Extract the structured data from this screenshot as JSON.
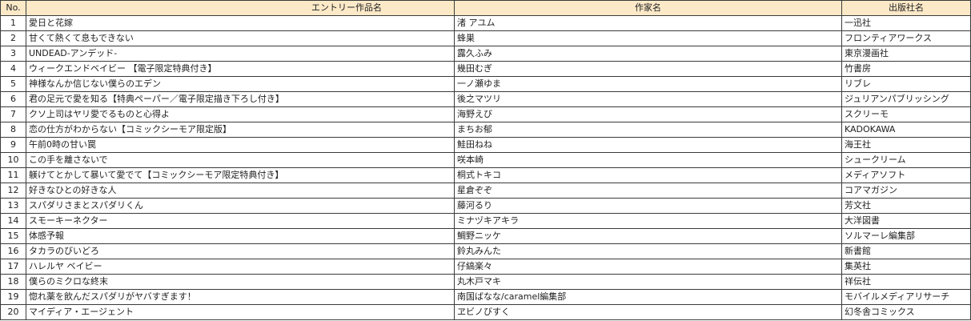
{
  "headers": {
    "no": "No.",
    "title": "エントリー作品名",
    "author": "作家名",
    "publisher": "出版社名"
  },
  "rows": [
    {
      "no": "1",
      "title": "愛日と花嫁",
      "author": "渚 アユム",
      "publisher": "一迅社"
    },
    {
      "no": "2",
      "title": "甘くて熱くて息もできない",
      "author": "蜂巣",
      "publisher": "フロンティアワークス"
    },
    {
      "no": "3",
      "title": "UNDEAD-アンデッド-",
      "author": "露久ふみ",
      "publisher": "東京漫画社"
    },
    {
      "no": "4",
      "title": "ウィークエンドベイビー 【電子限定特典付き】",
      "author": "幾田むぎ",
      "publisher": "竹書房"
    },
    {
      "no": "5",
      "title": "神様なんか信じない僕らのエデン",
      "author": "一ノ瀬ゆま",
      "publisher": "リブレ"
    },
    {
      "no": "6",
      "title": "君の足元で愛を知る【特典ペーパー／電子限定描き下ろし付き】",
      "author": "後之マツリ",
      "publisher": "ジュリアンパブリッシング"
    },
    {
      "no": "7",
      "title": "クソ上司はヤリ愛でるものと心得よ",
      "author": "海野えび",
      "publisher": "スクリーモ"
    },
    {
      "no": "8",
      "title": "恋の仕方がわからない【コミックシーモア限定版】",
      "author": "まちお郁",
      "publisher": "KADOKAWA"
    },
    {
      "no": "9",
      "title": "午前0時の甘い罠",
      "author": "鮭田ねね",
      "publisher": "海王社"
    },
    {
      "no": "10",
      "title": "この手を離さないで",
      "author": "咲本崎",
      "publisher": "シュークリーム"
    },
    {
      "no": "11",
      "title": "躾けてとかして暴いて愛でて【コミックシーモア限定特典付き】",
      "author": "桐式トキコ",
      "publisher": "メディアソフト"
    },
    {
      "no": "12",
      "title": "好きなひとの好きな人",
      "author": "星倉ぞぞ",
      "publisher": "コアマガジン"
    },
    {
      "no": "13",
      "title": "スパダリさまとスパダリくん",
      "author": "藤河るり",
      "publisher": "芳文社"
    },
    {
      "no": "14",
      "title": "スモーキーネクター",
      "author": "ミナヅキアキラ",
      "publisher": "大洋図書"
    },
    {
      "no": "15",
      "title": "体感予報",
      "author": "鯛野ニッケ",
      "publisher": "ソルマーレ編集部"
    },
    {
      "no": "16",
      "title": "タカラのびいどろ",
      "author": "鈴丸みんた",
      "publisher": "新書館"
    },
    {
      "no": "17",
      "title": "ハレルヤ ベイビー",
      "author": "仔縞楽々",
      "publisher": "集英社"
    },
    {
      "no": "18",
      "title": "僕らのミクロな終末",
      "author": "丸木戸マキ",
      "publisher": "祥伝社"
    },
    {
      "no": "19",
      "title": "惚れ薬を飲んだスパダリがヤバすぎます！",
      "author": "南国ばなな/caramel編集部",
      "publisher": "モバイルメディアリサーチ"
    },
    {
      "no": "20",
      "title": "マイディア・エージェント",
      "author": "ヱビノびすく",
      "publisher": "幻冬舎コミックス"
    }
  ]
}
